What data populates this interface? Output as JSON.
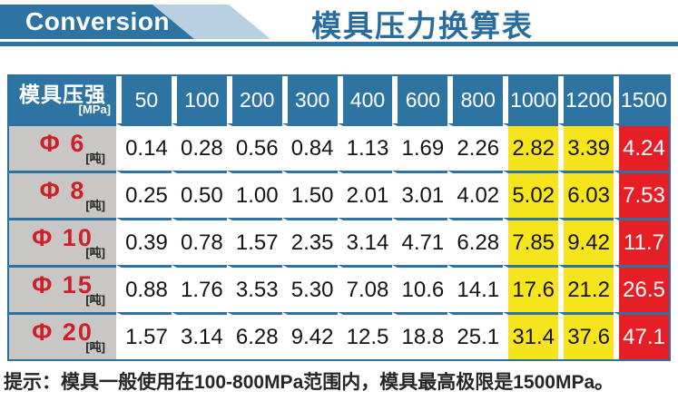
{
  "banner": {
    "label": "Conversion"
  },
  "title": "模具压力换算表",
  "table": {
    "corner": {
      "title": "模具压强",
      "unit": "[MPa]"
    },
    "pressures": [
      "50",
      "100",
      "200",
      "300",
      "400",
      "600",
      "800",
      "1000",
      "1200",
      "1500"
    ],
    "rows": [
      {
        "label": "Φ 6",
        "unit": "[吨]",
        "values": [
          "0.14",
          "0.28",
          "0.56",
          "0.84",
          "1.13",
          "1.69",
          "2.26",
          "2.82",
          "3.39",
          "4.24"
        ]
      },
      {
        "label": "Φ 8",
        "unit": "[吨]",
        "values": [
          "0.25",
          "0.50",
          "1.00",
          "1.50",
          "2.01",
          "3.01",
          "4.02",
          "5.02",
          "6.03",
          "7.53"
        ]
      },
      {
        "label": "Φ 10",
        "unit": "[吨]",
        "values": [
          "0.39",
          "0.78",
          "1.57",
          "2.35",
          "3.14",
          "4.71",
          "6.28",
          "7.85",
          "9.42",
          "11.7"
        ]
      },
      {
        "label": "Φ 15",
        "unit": "[吨]",
        "values": [
          "0.88",
          "1.76",
          "3.53",
          "5.30",
          "7.08",
          "10.6",
          "14.1",
          "17.6",
          "21.2",
          "26.5"
        ]
      },
      {
        "label": "Φ 20",
        "unit": "[吨]",
        "values": [
          "1.57",
          "3.14",
          "6.28",
          "9.42",
          "12.5",
          "18.8",
          "25.1",
          "31.4",
          "37.6",
          "47.1"
        ]
      }
    ]
  },
  "footer": {
    "note": "提示：模具一般使用在100-800MPa范围内，模具最高极限是1500MPa。"
  },
  "colors": {
    "header_blue": "#2e74a3",
    "border_teal": "#2d73a2",
    "banner_light_blue": "#b9cfe2",
    "row_header_gray": "#c8c7c5",
    "phi_red": "#cc2128",
    "highlight_yellow": "#f6e41c",
    "highlight_red": "#e61e26",
    "title_blue": "#2b6c9f"
  },
  "chart_data": {
    "type": "table",
    "title": "模具压力换算表",
    "x_header": "模具压强 [MPa]",
    "columns_mpa": [
      50,
      100,
      200,
      300,
      400,
      600,
      800,
      1000,
      1200,
      1500
    ],
    "row_unit": "吨",
    "rows": [
      {
        "diameter": "Φ6",
        "tons": [
          0.14,
          0.28,
          0.56,
          0.84,
          1.13,
          1.69,
          2.26,
          2.82,
          3.39,
          4.24
        ]
      },
      {
        "diameter": "Φ8",
        "tons": [
          0.25,
          0.5,
          1.0,
          1.5,
          2.01,
          3.01,
          4.02,
          5.02,
          6.03,
          7.53
        ]
      },
      {
        "diameter": "Φ10",
        "tons": [
          0.39,
          0.78,
          1.57,
          2.35,
          3.14,
          4.71,
          6.28,
          7.85,
          9.42,
          11.7
        ]
      },
      {
        "diameter": "Φ15",
        "tons": [
          0.88,
          1.76,
          3.53,
          5.3,
          7.08,
          10.6,
          14.1,
          17.6,
          21.2,
          26.5
        ]
      },
      {
        "diameter": "Φ20",
        "tons": [
          1.57,
          3.14,
          6.28,
          9.42,
          12.5,
          18.8,
          25.1,
          31.4,
          37.6,
          47.1
        ]
      }
    ],
    "highlight": {
      "yellow_columns_mpa": [
        1000,
        1200
      ],
      "red_column_mpa": [
        1500
      ]
    },
    "note": "提示：模具一般使用在100-800MPa范围内，模具最高极限是1500MPa。"
  }
}
